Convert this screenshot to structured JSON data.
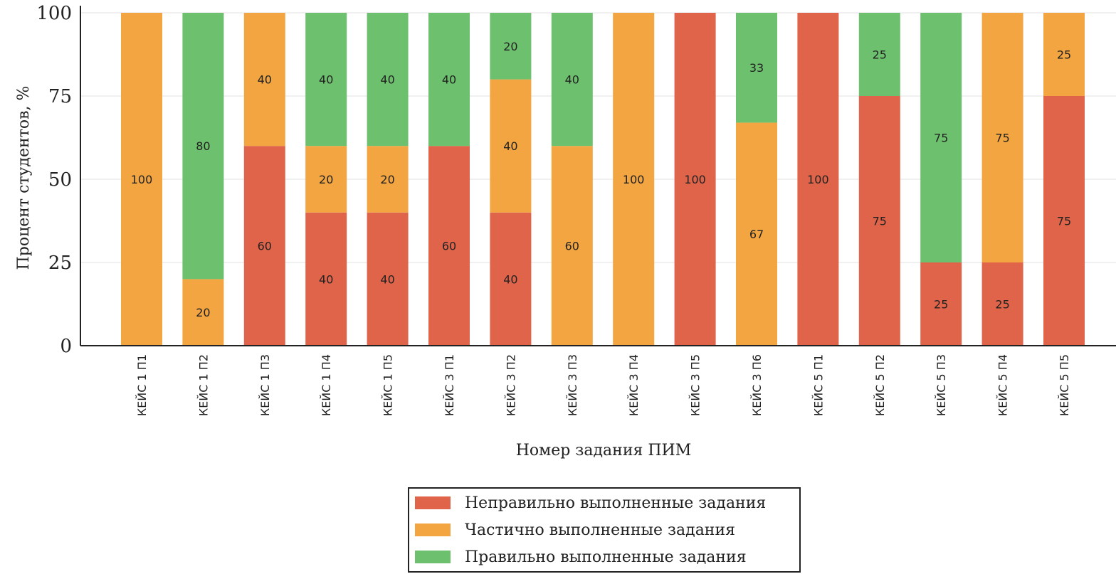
{
  "colors": {
    "incorrect": "#E0644A",
    "partial": "#F2A541",
    "correct": "#6DC06D"
  },
  "chart_data": {
    "type": "bar",
    "stacked": true,
    "title": "",
    "xlabel": "Номер задания ПИМ",
    "ylabel": "Процент студентов, %",
    "ylim": [
      0,
      100
    ],
    "yticks": [
      "0",
      "25",
      "50",
      "75",
      "100"
    ],
    "grid": "horizontal",
    "legend_position": "bottom-center",
    "categories": [
      "КЕЙС 1 П1",
      "КЕЙС 1 П2",
      "КЕЙС 1 П3",
      "КЕЙС 1 П4",
      "КЕЙС 1 П5",
      "КЕЙС 3 П1",
      "КЕЙС 3 П2",
      "КЕЙС 3 П3",
      "КЕЙС 3 П4",
      "КЕЙС 3 П5",
      "КЕЙС 3 П6",
      "КЕЙС 5 П1",
      "КЕЙС 5 П2",
      "КЕЙС 5 П3",
      "КЕЙС 5 П4",
      "КЕЙС 5 П5"
    ],
    "series": [
      {
        "name": "Неправильно выполненные задания",
        "color_key": "incorrect",
        "values": [
          0,
          0,
          60,
          40,
          40,
          60,
          40,
          0,
          0,
          100,
          0,
          100,
          75,
          25,
          25,
          75
        ]
      },
      {
        "name": "Частично выполненные задания",
        "color_key": "partial",
        "values": [
          100,
          20,
          40,
          20,
          20,
          0,
          40,
          60,
          100,
          0,
          67,
          0,
          0,
          0,
          75,
          25
        ]
      },
      {
        "name": "Правильно выполненные задания",
        "color_key": "correct",
        "values": [
          0,
          80,
          0,
          40,
          40,
          40,
          20,
          40,
          0,
          0,
          33,
          0,
          25,
          75,
          0,
          0
        ]
      }
    ]
  }
}
